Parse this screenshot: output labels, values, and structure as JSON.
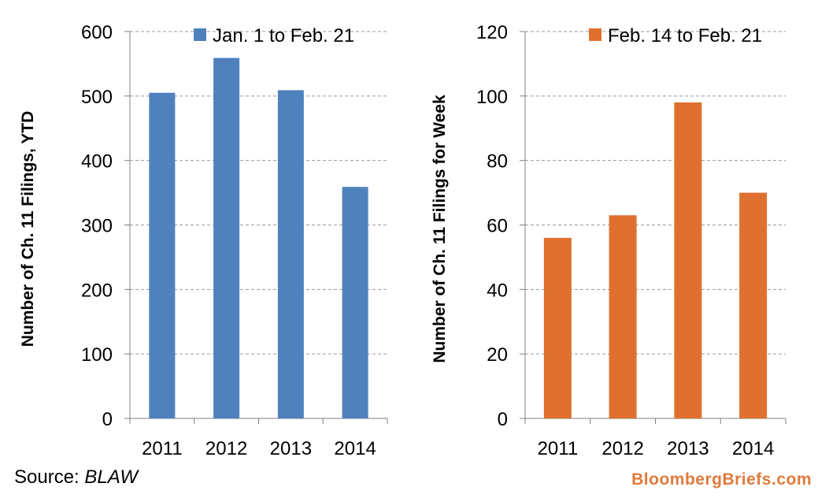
{
  "chart_data": [
    {
      "type": "bar",
      "categories": [
        "2011",
        "2012",
        "2013",
        "2014"
      ],
      "series": [
        {
          "name": "Jan. 1 to Feb. 21",
          "values": [
            505,
            559,
            509,
            359
          ],
          "color": "#4f81bd"
        }
      ],
      "ylabel": "Number of Ch. 11 Filings, YTD",
      "xlabel": "",
      "ylim": [
        0,
        600
      ],
      "yticks": [
        0,
        100,
        200,
        300,
        400,
        500,
        600
      ],
      "grid": true,
      "legend_position": "top-right"
    },
    {
      "type": "bar",
      "categories": [
        "2011",
        "2012",
        "2013",
        "2014"
      ],
      "series": [
        {
          "name": "Feb. 14 to Feb. 21",
          "values": [
            56,
            63,
            98,
            70
          ],
          "color": "#e0702f"
        }
      ],
      "ylabel": "Number of Ch. 11 Filings for Week",
      "xlabel": "",
      "ylim": [
        0,
        120
      ],
      "yticks": [
        0,
        20,
        40,
        60,
        80,
        100,
        120
      ],
      "grid": true,
      "legend_position": "top-right"
    }
  ],
  "footer": {
    "source_label": "Source: ",
    "source_name": "BLAW",
    "brand": "BloombergBriefs.com"
  }
}
